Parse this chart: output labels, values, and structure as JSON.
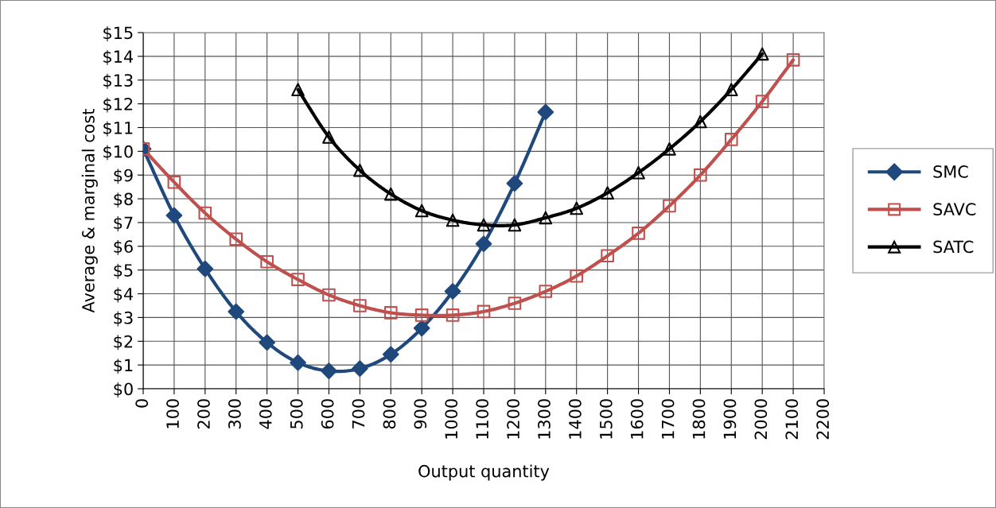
{
  "chart_data": {
    "type": "line",
    "xlabel": "Output quantity",
    "ylabel": "Average & marginal cost",
    "x": [
      0,
      100,
      200,
      300,
      400,
      500,
      600,
      700,
      800,
      900,
      1000,
      1100,
      1200,
      1300,
      1400,
      1500,
      1600,
      1700,
      1800,
      1900,
      2000,
      2100
    ],
    "series": [
      {
        "name": "SMC",
        "color": "#1f497d",
        "marker": "diamond",
        "values": [
          10.1,
          7.3,
          5.05,
          3.25,
          1.95,
          1.1,
          0.75,
          0.85,
          1.45,
          2.55,
          4.1,
          6.1,
          8.65,
          11.65,
          null,
          null,
          null,
          null,
          null,
          null,
          null,
          null
        ]
      },
      {
        "name": "SAVC",
        "color": "#c0504d",
        "marker": "square",
        "values": [
          10.1,
          8.7,
          7.4,
          6.3,
          5.35,
          4.6,
          3.95,
          3.5,
          3.2,
          3.1,
          3.1,
          3.25,
          3.6,
          4.1,
          4.75,
          5.6,
          6.55,
          7.7,
          9.0,
          10.5,
          12.1,
          13.85
        ]
      },
      {
        "name": "SATC",
        "color": "#000000",
        "marker": "triangle",
        "values": [
          null,
          null,
          null,
          null,
          null,
          12.6,
          10.6,
          9.2,
          8.2,
          7.5,
          7.1,
          6.9,
          6.9,
          7.2,
          7.6,
          8.25,
          9.1,
          10.1,
          11.25,
          12.6,
          14.1,
          null
        ]
      }
    ],
    "xlim": [
      0,
      2200
    ],
    "xticks": [
      0,
      100,
      200,
      300,
      400,
      500,
      600,
      700,
      800,
      900,
      1000,
      1100,
      1200,
      1300,
      1400,
      1500,
      1600,
      1700,
      1800,
      1900,
      2000,
      2100,
      2200
    ],
    "ylim": [
      0,
      15
    ],
    "yticks": [
      {
        "value": 0,
        "label": "$0"
      },
      {
        "value": 1,
        "label": "$1"
      },
      {
        "value": 2,
        "label": "$2"
      },
      {
        "value": 3,
        "label": "$3"
      },
      {
        "value": 4,
        "label": "$4"
      },
      {
        "value": 5,
        "label": "$5"
      },
      {
        "value": 6,
        "label": "$6"
      },
      {
        "value": 7,
        "label": "$7"
      },
      {
        "value": 8,
        "label": "$8"
      },
      {
        "value": 9,
        "label": "$9"
      },
      {
        "value": 10,
        "label": "$10"
      },
      {
        "value": 11,
        "label": "$11"
      },
      {
        "value": 12,
        "label": "$12"
      },
      {
        "value": 13,
        "label": "$13"
      },
      {
        "value": 14,
        "label": "$14"
      },
      {
        "value": 15,
        "label": "$15"
      }
    ],
    "grid": true,
    "legend": "right",
    "line_style": "solid"
  }
}
